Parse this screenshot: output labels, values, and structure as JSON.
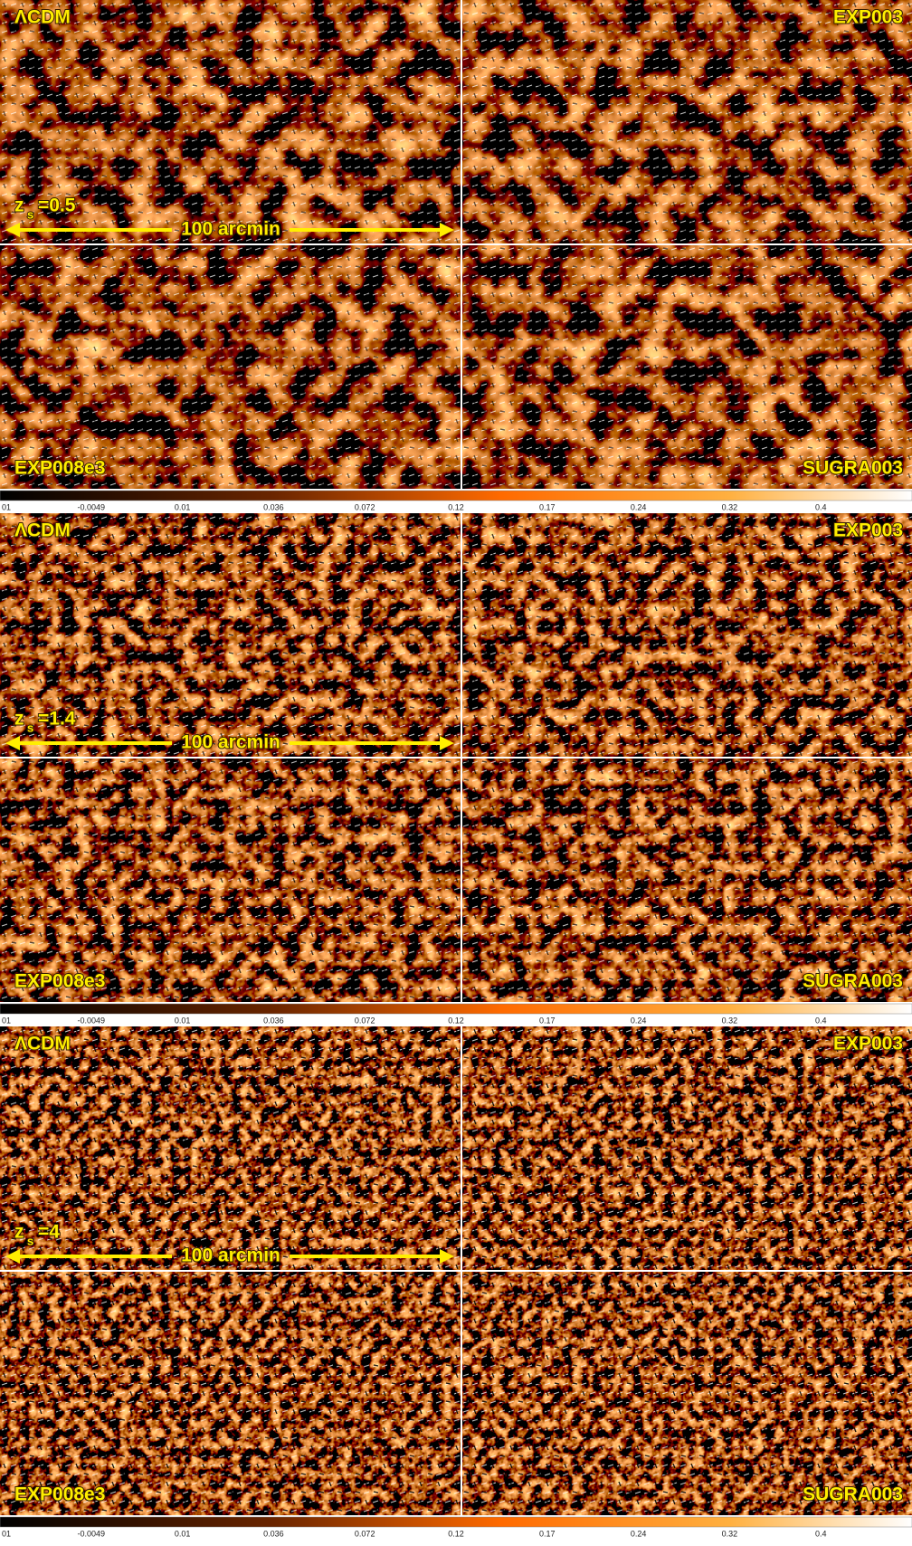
{
  "blocks": [
    {
      "panels": [
        "ΛCDM",
        "EXP003",
        "EXP008e3",
        "SUGRA003"
      ],
      "redshift": {
        "symbol": "z",
        "subscript": "s",
        "value": "=0.5"
      },
      "scale": "100 arcmin"
    },
    {
      "panels": [
        "ΛCDM",
        "EXP003",
        "EXP008e3",
        "SUGRA003"
      ],
      "redshift": {
        "symbol": "z",
        "subscript": "s",
        "value": "=1.4"
      },
      "scale": "100 arcmin"
    },
    {
      "panels": [
        "ΛCDM",
        "EXP003",
        "EXP008e3",
        "SUGRA003"
      ],
      "redshift": {
        "symbol": "z",
        "subscript": "s",
        "value": "=4"
      },
      "scale": "100 arcmin"
    }
  ],
  "colorbar": {
    "labels": [
      "01",
      "-0.0049",
      "0.01",
      "0.036",
      "0.072",
      "0.12",
      "0.17",
      "0.24",
      "0.32",
      "0.4"
    ]
  }
}
